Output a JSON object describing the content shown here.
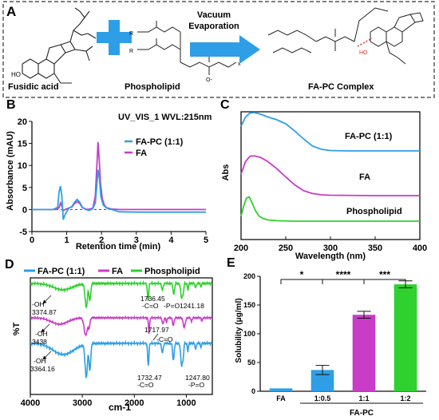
{
  "colors": {
    "blue": "#2E9FE6",
    "magenta": "#C83CC8",
    "green": "#2ED12E",
    "axis": "#111111"
  },
  "panel_labels": {
    "a": "A",
    "b": "B",
    "c": "C",
    "d": "D",
    "e": "E"
  },
  "panel_a": {
    "fusidic_acid_label": "Fusidic acid",
    "phospholipid_label": "Phospholipid",
    "process_label_1": "Vacuum",
    "process_label_2": "Evaporation",
    "product_label": "FA-PC Complex",
    "structure_labels": {
      "oh": "HO",
      "r1": "R",
      "r2": "R",
      "x": "x",
      "o_minus": "O-"
    }
  },
  "chart_data": [
    {
      "id": "B",
      "type": "line",
      "title": "UV_VIS_1 WVL:215nm",
      "xlabel": "Retention time (min)",
      "ylabel": "Absorbance (mAU)",
      "xlim": [
        0,
        5
      ],
      "ylim": [
        -5,
        20
      ],
      "xticks": [
        "0",
        "1",
        "2",
        "3",
        "4",
        "5"
      ],
      "yticks": [
        "-5",
        "0",
        "5",
        "10",
        "15",
        "20"
      ],
      "legend_position": "right",
      "series": [
        {
          "name": "FA-PC (1:1)",
          "color": "#2E9FE6",
          "x": [
            0,
            0.6,
            0.74,
            0.78,
            0.82,
            0.86,
            0.9,
            0.95,
            1.05,
            1.15,
            1.22,
            1.3,
            1.38,
            1.45,
            1.55,
            1.65,
            1.75,
            1.82,
            1.86,
            1.9,
            1.94,
            1.98,
            2.05,
            2.15,
            2.3,
            2.5,
            3,
            3.5,
            4,
            4.5,
            5
          ],
          "y": [
            0,
            0,
            0.5,
            4,
            5.3,
            3,
            -2.3,
            -1.2,
            0.2,
            0.7,
            1.6,
            2.3,
            1.6,
            0.5,
            0,
            -0.2,
            0.2,
            1.5,
            5,
            9,
            7,
            3,
            1,
            0.3,
            0,
            -0.5,
            -0.6,
            -0.6,
            -0.6,
            -0.6,
            -0.6
          ]
        },
        {
          "name": "FA",
          "color": "#C83CC8",
          "x": [
            0,
            0.7,
            0.78,
            0.82,
            0.86,
            0.9,
            0.95,
            1.05,
            1.15,
            1.22,
            1.3,
            1.38,
            1.45,
            1.6,
            1.75,
            1.82,
            1.86,
            1.9,
            1.93,
            1.97,
            2.02,
            2.08,
            2.15,
            2.3,
            2.5,
            3,
            5
          ],
          "y": [
            0,
            0,
            0.4,
            1.5,
            0.8,
            -0.3,
            0,
            0.3,
            0.6,
            1.3,
            1.8,
            1.3,
            0.4,
            0,
            0.3,
            3,
            9,
            15.3,
            12,
            6,
            2.5,
            1,
            0.4,
            0.1,
            0,
            0,
            0
          ]
        }
      ]
    },
    {
      "id": "C",
      "type": "line",
      "xlabel": "Wavelength (nm)",
      "ylabel": "Abs",
      "xlim": [
        200,
        400
      ],
      "xticks": [
        "200",
        "250",
        "300",
        "350",
        "400"
      ],
      "series": [
        {
          "name": "FA-PC (1:1)",
          "color": "#2E9FE6",
          "x": [
            200,
            205,
            210,
            215,
            222,
            230,
            240,
            250,
            260,
            270,
            280,
            290,
            300,
            320,
            350,
            400
          ],
          "y": [
            0.62,
            0.85,
            0.95,
            0.96,
            0.92,
            0.85,
            0.78,
            0.68,
            0.5,
            0.3,
            0.12,
            0.04,
            0.01,
            0,
            0,
            0
          ]
        },
        {
          "name": "FA",
          "color": "#C83CC8",
          "x": [
            200,
            205,
            210,
            215,
            222,
            230,
            240,
            250,
            260,
            270,
            280,
            290,
            300,
            350,
            400
          ],
          "y": [
            0.52,
            0.82,
            0.95,
            0.96,
            0.92,
            0.82,
            0.65,
            0.45,
            0.26,
            0.12,
            0.05,
            0.02,
            0.01,
            0,
            0
          ]
        },
        {
          "name": "Phospholipid",
          "color": "#2ED12E",
          "x": [
            200,
            203,
            206,
            209,
            212,
            216,
            220,
            225,
            230,
            240,
            260,
            300,
            400
          ],
          "y": [
            0.2,
            0.6,
            0.9,
            0.95,
            0.75,
            0.42,
            0.2,
            0.1,
            0.05,
            0.02,
            0,
            0,
            0
          ]
        }
      ]
    },
    {
      "id": "D",
      "type": "line",
      "xlabel": "cm-1",
      "ylabel": "%T",
      "xlim": [
        4000,
        500
      ],
      "xticks": [
        "4000",
        "3000",
        "2000",
        "1000"
      ],
      "legend_position": "top",
      "series": [
        {
          "name": "FA-PC (1:1)",
          "color": "#2E9FE6"
        },
        {
          "name": "FA",
          "color": "#C83CC8"
        },
        {
          "name": "Phospholipid",
          "color": "#2ED12E"
        }
      ],
      "annotations": [
        {
          "series": "Phospholipid",
          "lines": [
            "-OH",
            "3374.87"
          ]
        },
        {
          "series": "Phospholipid",
          "lines": [
            "1736.45",
            "-C=O"
          ]
        },
        {
          "series": "Phospholipid",
          "lines": [
            "-P=O1241.18"
          ]
        },
        {
          "series": "FA",
          "lines": [
            "-OH",
            "3438"
          ]
        },
        {
          "series": "FA",
          "lines": [
            "1717.97",
            "-C=O"
          ]
        },
        {
          "series": "FA-PC (1:1)",
          "lines": [
            "-OH",
            "3364.16"
          ]
        },
        {
          "series": "FA-PC (1:1)",
          "lines": [
            "1732.47",
            "-C=O"
          ]
        },
        {
          "series": "FA-PC (1:1)",
          "lines": [
            "1247.80",
            "-P=O"
          ]
        }
      ]
    },
    {
      "id": "E",
      "type": "bar",
      "ylabel": "Solubility (μg/ml)",
      "ylim": [
        0,
        200
      ],
      "yticks": [
        "0",
        "50",
        "100",
        "150",
        "200"
      ],
      "categories": [
        "FA",
        "1:0.5",
        "1:1",
        "1:2"
      ],
      "values": [
        5,
        37,
        133,
        186
      ],
      "errors": [
        0,
        8,
        6,
        6
      ],
      "colors": [
        "#2E9FE6",
        "#2E9FE6",
        "#C83CC8",
        "#2ED12E"
      ],
      "group_label": "FA-PC",
      "significance": [
        "*",
        "****",
        "***"
      ]
    }
  ]
}
